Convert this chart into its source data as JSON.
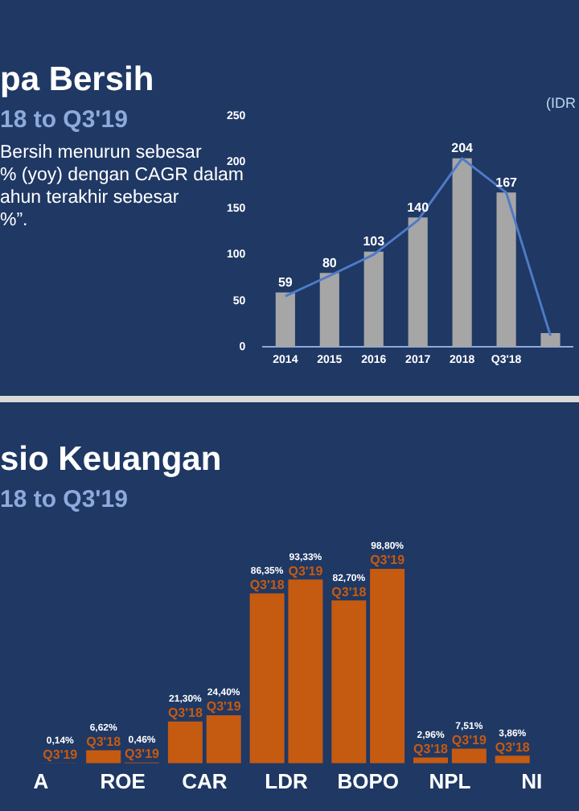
{
  "chart_data": [
    {
      "type": "bar",
      "title": "pa Bersih",
      "subtitle": "18 to Q3'19",
      "ylabel": "(IDR",
      "annotations": [
        "Bersih menurun sebesar",
        "% (yoy) dengan CAGR dalam",
        "ahun terakhir sebesar",
        "%”."
      ],
      "categories": [
        "2014",
        "2015",
        "2016",
        "2017",
        "2018",
        "Q3'18",
        null
      ],
      "ylim": [
        0,
        250
      ],
      "yticks": [
        0,
        50,
        100,
        150,
        200,
        250
      ],
      "series": [
        {
          "color": "#a6a6a6",
          "values": [
            59,
            80,
            103,
            140,
            204,
            167,
            15
          ],
          "value_labels": [
            "59",
            "80",
            "103",
            "140",
            "204",
            "167",
            null
          ]
        },
        {
          "type": "line",
          "color": "#4f7ac8",
          "values": [
            55,
            77,
            100,
            137,
            204,
            167,
            12
          ]
        }
      ]
    },
    {
      "type": "bar",
      "title": "sio Keuangan",
      "subtitle": "18 to Q3'19",
      "tick_labels": "x",
      "categories": [
        "A",
        "ROE",
        "CAR",
        "LDR",
        "BOPO",
        "NPL",
        "NI"
      ],
      "series": [
        {
          "name": "Q3'18",
          "color": "#c55a11",
          "values": [
            null,
            6.62,
            21.3,
            86.35,
            82.7,
            2.96,
            3.86
          ],
          "value_labels": [
            null,
            "6,62%",
            "21,30%",
            "86,35%",
            "82,70%",
            "2,96%",
            "3,86%"
          ]
        },
        {
          "name": "Q3'19",
          "color": "#c55a11",
          "values": [
            0.14,
            0.46,
            24.4,
            93.33,
            98.8,
            7.51,
            null
          ],
          "value_labels": [
            "0,14%",
            "0,46%",
            "24,40%",
            "93,33%",
            "98,80%",
            "7,51%",
            null
          ]
        }
      ]
    }
  ]
}
